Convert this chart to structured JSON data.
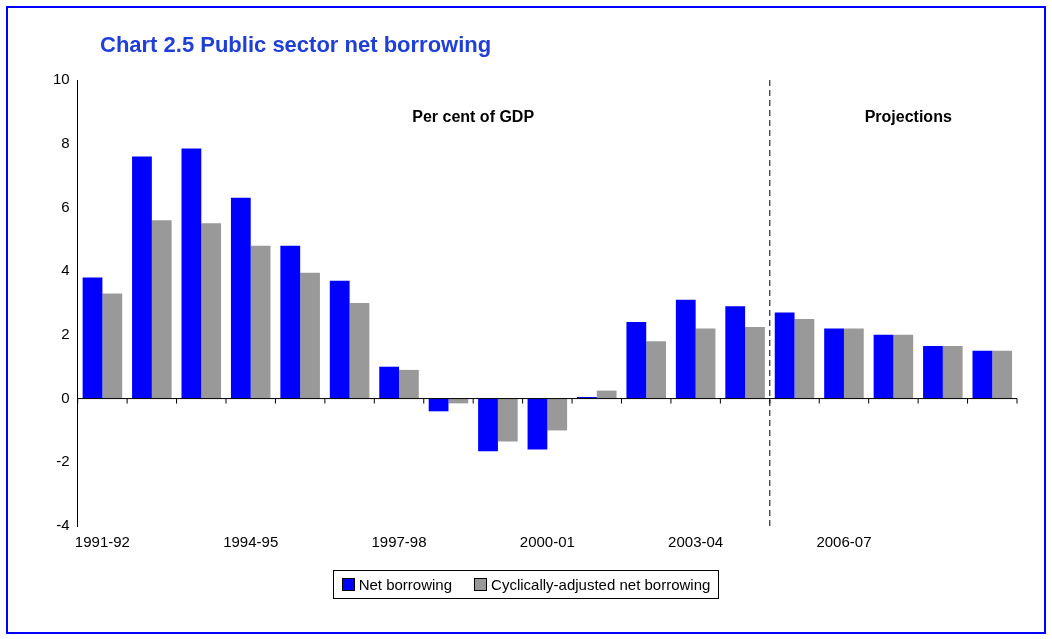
{
  "chart_data": {
    "type": "bar",
    "title": "Chart 2.5 Public sector net borrowing",
    "categories": [
      "1991-92",
      null,
      null,
      "1994-95",
      null,
      null,
      "1997-98",
      null,
      null,
      "2000-01",
      null,
      null,
      "2003-04",
      null,
      null,
      "2006-07",
      null,
      null,
      null
    ],
    "series": [
      {
        "name": "Net borrowing",
        "color": "#0000ff",
        "values": [
          3.8,
          7.6,
          7.85,
          6.3,
          4.8,
          3.7,
          1.0,
          -0.4,
          -1.65,
          -1.6,
          0.05,
          2.4,
          3.1,
          2.9,
          2.7,
          2.2,
          2.0,
          1.65,
          1.5
        ]
      },
      {
        "name": "Cyclically-adjusted net borrowing",
        "color": "#999999",
        "values": [
          3.3,
          5.6,
          5.5,
          4.8,
          3.95,
          3.0,
          0.9,
          -0.15,
          -1.35,
          -1.0,
          0.25,
          1.8,
          2.2,
          2.25,
          2.5,
          2.2,
          2.0,
          1.65,
          1.5
        ]
      }
    ],
    "ylim": [
      -4,
      10
    ],
    "yticks": [
      -4,
      -2,
      0,
      2,
      4,
      6,
      8,
      10
    ],
    "grid": false,
    "legend": "bottom",
    "annotations": [
      "Per cent of GDP",
      "Projections"
    ]
  }
}
